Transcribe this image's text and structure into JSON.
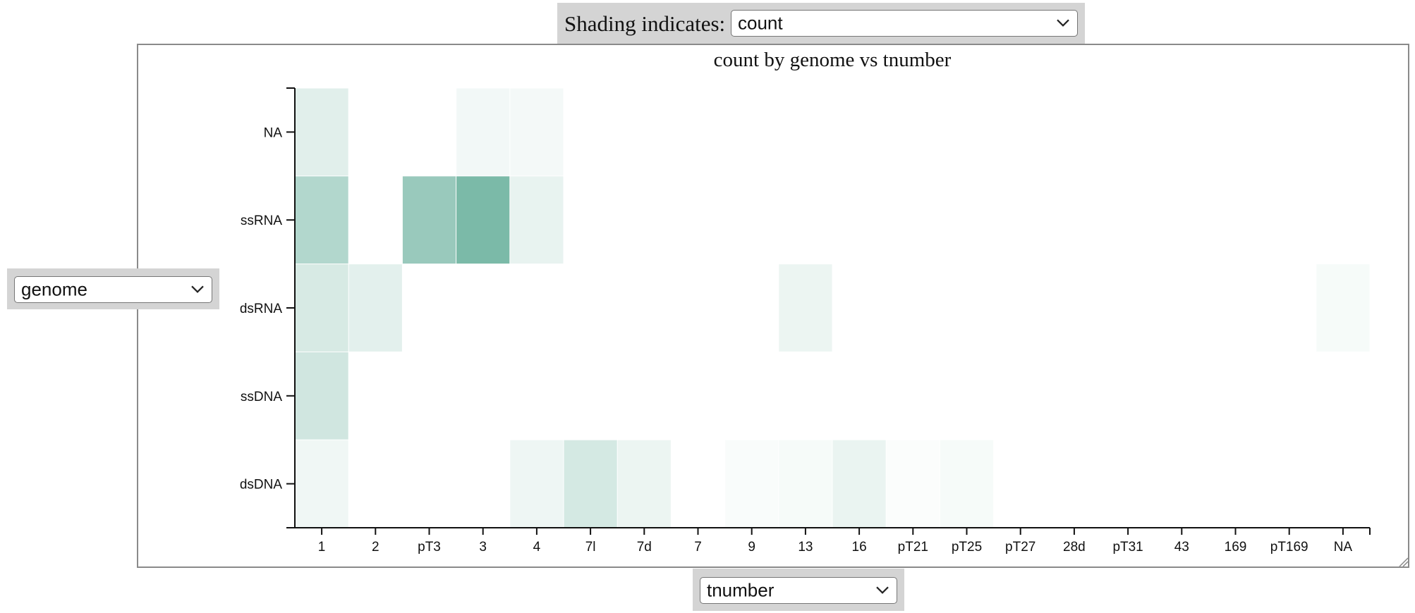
{
  "controls": {
    "shading_label": "Shading indicates:",
    "shading_value": "count",
    "y_axis_value": "genome",
    "x_axis_value": "tnumber"
  },
  "chart_data": {
    "type": "heatmap",
    "title": "count by genome vs tnumber",
    "xlabel": "",
    "ylabel": "",
    "x_categories": [
      "1",
      "2",
      "pT3",
      "3",
      "4",
      "7l",
      "7d",
      "7",
      "9",
      "13",
      "16",
      "pT21",
      "pT25",
      "pT27",
      "28d",
      "pT31",
      "43",
      "169",
      "pT169",
      "NA"
    ],
    "y_categories": [
      "NA",
      "ssRNA",
      "dsRNA",
      "ssDNA",
      "dsDNA"
    ],
    "shading_measure": "count",
    "color_low": "#ffffff",
    "color_high": "#2a8f73",
    "values": [
      [
        0.14,
        0,
        0,
        0.06,
        0.05,
        0,
        0,
        0,
        0,
        0,
        0,
        0,
        0,
        0,
        0,
        0,
        0,
        0,
        0,
        0
      ],
      [
        0.36,
        0,
        0.48,
        0.62,
        0.11,
        0,
        0,
        0,
        0,
        0,
        0,
        0,
        0,
        0,
        0,
        0,
        0,
        0,
        0,
        0
      ],
      [
        0.19,
        0.13,
        0,
        0,
        0,
        0,
        0,
        0,
        0,
        0.09,
        0,
        0,
        0,
        0,
        0,
        0,
        0,
        0,
        0,
        0.04
      ],
      [
        0.22,
        0,
        0,
        0,
        0,
        0,
        0,
        0,
        0,
        0,
        0,
        0,
        0,
        0,
        0,
        0,
        0,
        0,
        0,
        0
      ],
      [
        0.07,
        0,
        0,
        0,
        0.08,
        0.2,
        0.09,
        0,
        0.03,
        0.04,
        0.1,
        0.02,
        0.04,
        0,
        0,
        0,
        0,
        0,
        0,
        0
      ]
    ]
  }
}
